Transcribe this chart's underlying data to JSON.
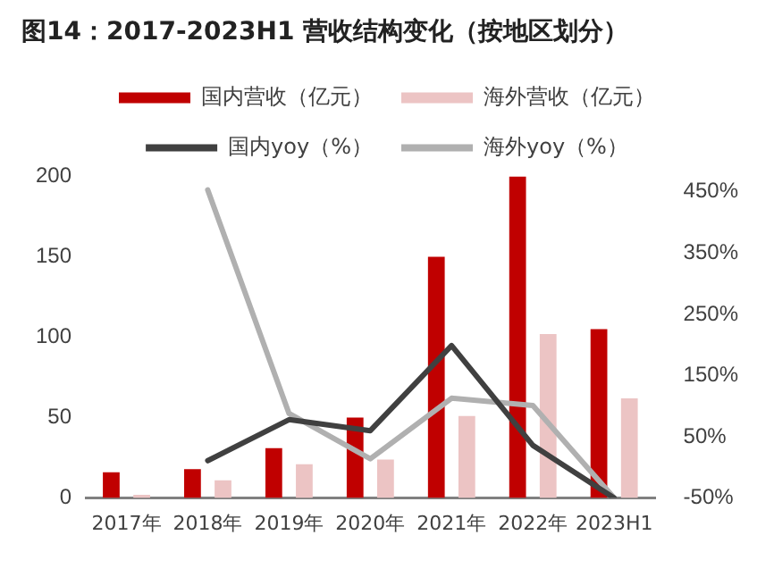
{
  "chart_data": {
    "type": "bar",
    "title": "图14：2017-2023H1 营收结构变化（按地区划分）",
    "categories": [
      "2017年",
      "2018年",
      "2019年",
      "2020年",
      "2021年",
      "2022年",
      "2023H1"
    ],
    "series": [
      {
        "name": "国内营收（亿元）",
        "type": "bar",
        "color": "#c00000",
        "values": [
          16,
          18,
          31,
          50,
          150,
          200,
          105
        ]
      },
      {
        "name": "海外营收（亿元）",
        "type": "bar",
        "color": "#ecc4c4",
        "values": [
          2,
          11,
          21,
          24,
          51,
          102,
          62
        ]
      },
      {
        "name": "国内yoy（%）",
        "type": "line",
        "axis": "y2",
        "color": "#404040",
        "values": [
          null,
          11,
          78,
          60,
          199,
          36,
          -50
        ]
      },
      {
        "name": "海外yoy（%）",
        "type": "line",
        "axis": "y2",
        "color": "#b0b0b0",
        "values": [
          null,
          453,
          88,
          14,
          113,
          101,
          -50
        ]
      }
    ],
    "ylim": [
      0,
      200
    ],
    "yticks": [
      0,
      50,
      100,
      150,
      200
    ],
    "y2lim": [
      -50,
      475
    ],
    "y2ticks": [
      {
        "value": -50,
        "label": "-50%"
      },
      {
        "value": 50,
        "label": "50%"
      },
      {
        "value": 150,
        "label": "150%"
      },
      {
        "value": 250,
        "label": "250%"
      },
      {
        "value": 350,
        "label": "350%"
      },
      {
        "value": 450,
        "label": "450%"
      }
    ],
    "grid": false,
    "legend": "top",
    "marker": "none",
    "line_style": "solid"
  }
}
